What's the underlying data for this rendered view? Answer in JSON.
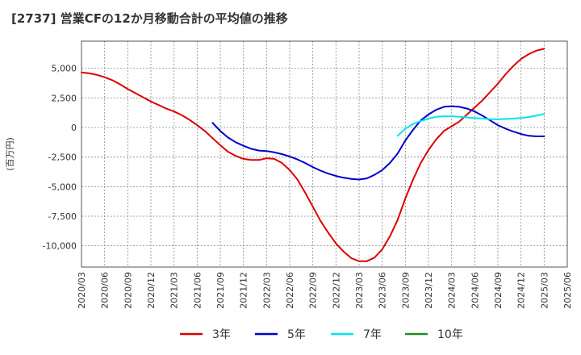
{
  "title": "[2737]  営業CFの12か月移動合計の平均値の推移",
  "chart_data": {
    "type": "line",
    "title": "[2737]  営業CFの12か月移動合計の平均値の推移",
    "ylabel": "(百万円)",
    "xlabel": "",
    "ylim": [
      -11800,
      7300
    ],
    "yticks": [
      5000,
      2500,
      0,
      -2500,
      -5000,
      -7500,
      -10000
    ],
    "ytick_labels": [
      "5,000",
      "2,500",
      "0",
      "-2,500",
      "-5,000",
      "-7,500",
      "-10,000"
    ],
    "xtick_labels": [
      "2020/03",
      "2020/06",
      "2020/09",
      "2020/12",
      "2021/03",
      "2021/06",
      "2021/09",
      "2021/12",
      "2022/03",
      "2022/06",
      "2022/09",
      "2022/12",
      "2023/03",
      "2023/06",
      "2023/09",
      "2023/12",
      "2024/03",
      "2024/06",
      "2024/09",
      "2024/12",
      "2025/03",
      "2025/06"
    ],
    "grid": true,
    "legend_position": "bottom",
    "series": [
      {
        "name": "3年",
        "color": "#dd0000",
        "x": [
          "2020/03",
          "2020/04",
          "2020/05",
          "2020/06",
          "2020/07",
          "2020/08",
          "2020/09",
          "2020/10",
          "2020/11",
          "2020/12",
          "2021/01",
          "2021/02",
          "2021/03",
          "2021/04",
          "2021/05",
          "2021/06",
          "2021/07",
          "2021/08",
          "2021/09",
          "2021/10",
          "2021/11",
          "2021/12",
          "2022/01",
          "2022/02",
          "2022/03",
          "2022/04",
          "2022/05",
          "2022/06",
          "2022/07",
          "2022/08",
          "2022/09",
          "2022/10",
          "2022/11",
          "2022/12",
          "2023/01",
          "2023/02",
          "2023/03",
          "2023/04",
          "2023/05",
          "2023/06",
          "2023/07",
          "2023/08",
          "2023/09",
          "2023/10",
          "2023/11",
          "2023/12",
          "2024/01",
          "2024/02",
          "2024/03",
          "2024/04",
          "2024/05",
          "2024/06",
          "2024/07",
          "2024/08",
          "2024/09",
          "2024/10",
          "2024/11",
          "2024/12",
          "2025/01",
          "2025/02",
          "2025/03"
        ],
        "values": [
          4650,
          4580,
          4450,
          4250,
          4000,
          3650,
          3250,
          2900,
          2550,
          2200,
          1900,
          1600,
          1350,
          1050,
          650,
          200,
          -300,
          -900,
          -1500,
          -2050,
          -2400,
          -2650,
          -2750,
          -2750,
          -2600,
          -2650,
          -3000,
          -3600,
          -4400,
          -5500,
          -6700,
          -7900,
          -8900,
          -9800,
          -10500,
          -11050,
          -11300,
          -11300,
          -11000,
          -10300,
          -9200,
          -7800,
          -6000,
          -4400,
          -3000,
          -1900,
          -1000,
          -300,
          100,
          500,
          1100,
          1700,
          2300,
          3000,
          3700,
          4500,
          5200,
          5800,
          6200,
          6500,
          6650
        ]
      },
      {
        "name": "5年",
        "color": "#0000cc",
        "x": [
          "2021/08",
          "2021/09",
          "2021/10",
          "2021/11",
          "2021/12",
          "2022/01",
          "2022/02",
          "2022/03",
          "2022/04",
          "2022/05",
          "2022/06",
          "2022/07",
          "2022/08",
          "2022/09",
          "2022/10",
          "2022/11",
          "2022/12",
          "2023/01",
          "2023/02",
          "2023/03",
          "2023/04",
          "2023/05",
          "2023/06",
          "2023/07",
          "2023/08",
          "2023/09",
          "2023/10",
          "2023/11",
          "2023/12",
          "2024/01",
          "2024/02",
          "2024/03",
          "2024/04",
          "2024/05",
          "2024/06",
          "2024/07",
          "2024/08",
          "2024/09",
          "2024/10",
          "2024/11",
          "2024/12",
          "2025/01",
          "2025/02",
          "2025/03"
        ],
        "values": [
          400,
          -300,
          -850,
          -1250,
          -1550,
          -1800,
          -1950,
          -2000,
          -2100,
          -2250,
          -2450,
          -2700,
          -3000,
          -3350,
          -3650,
          -3900,
          -4100,
          -4250,
          -4350,
          -4400,
          -4300,
          -4000,
          -3600,
          -3000,
          -2200,
          -1100,
          -200,
          600,
          1100,
          1500,
          1750,
          1800,
          1750,
          1600,
          1350,
          1000,
          600,
          200,
          -100,
          -350,
          -550,
          -700,
          -750,
          -750
        ]
      },
      {
        "name": "7年",
        "color": "#00e5ee",
        "x": [
          "2023/08",
          "2023/09",
          "2023/10",
          "2023/11",
          "2023/12",
          "2024/01",
          "2024/02",
          "2024/03",
          "2024/04",
          "2024/05",
          "2024/06",
          "2024/07",
          "2024/08",
          "2024/09",
          "2024/10",
          "2024/11",
          "2024/12",
          "2025/01",
          "2025/02",
          "2025/03"
        ],
        "values": [
          -700,
          -100,
          300,
          550,
          750,
          900,
          950,
          950,
          900,
          850,
          800,
          750,
          700,
          700,
          720,
          750,
          800,
          880,
          1000,
          1150
        ]
      },
      {
        "name": "10年",
        "color": "#228b22",
        "x": [],
        "values": []
      }
    ]
  },
  "legend": [
    {
      "label": "3年",
      "color": "#dd0000"
    },
    {
      "label": "5年",
      "color": "#0000cc"
    },
    {
      "label": "7年",
      "color": "#00e5ee"
    },
    {
      "label": "10年",
      "color": "#228b22"
    }
  ]
}
